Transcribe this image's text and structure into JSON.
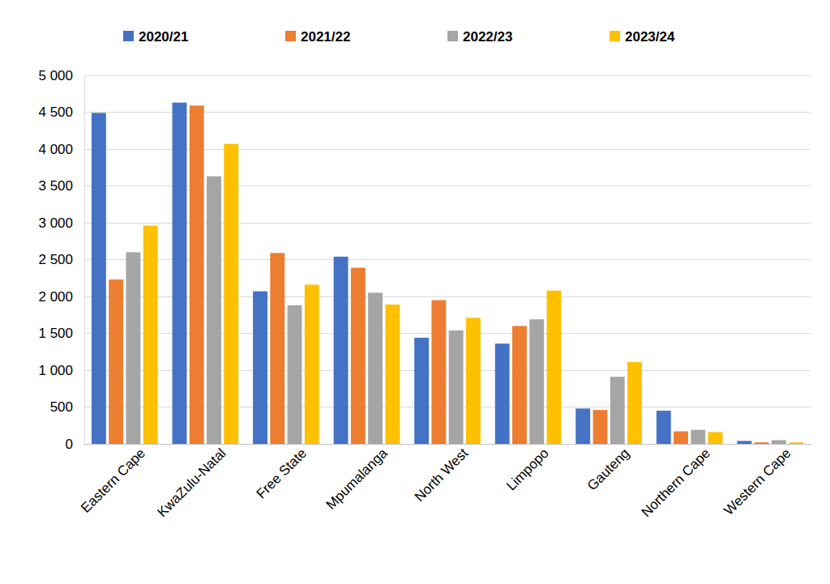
{
  "chart_data": {
    "type": "bar",
    "categories": [
      "Eastern Cape",
      "KwaZulu-Natal",
      "Free State",
      "Mpumalanga",
      "North West",
      "Limpopo",
      "Gauteng",
      "Northern Cape",
      "Western Cape"
    ],
    "series": [
      {
        "name": "2020/21",
        "color": "#4472c4",
        "values": [
          4490,
          4630,
          2070,
          2540,
          1440,
          1360,
          480,
          450,
          40
        ]
      },
      {
        "name": "2021/22",
        "color": "#ed7d31",
        "values": [
          2230,
          4590,
          2590,
          2390,
          1950,
          1600,
          460,
          170,
          20
        ]
      },
      {
        "name": "2022/23",
        "color": "#a5a5a5",
        "values": [
          2600,
          3630,
          1880,
          2050,
          1540,
          1690,
          910,
          190,
          50
        ]
      },
      {
        "name": "2023/24",
        "color": "#ffc000",
        "values": [
          2960,
          4070,
          2160,
          1890,
          1710,
          2080,
          1110,
          160,
          20
        ]
      }
    ],
    "ylim": [
      0,
      5000
    ],
    "yticks": [
      0,
      500,
      {
        "value": 1000,
        "label": "1 000"
      },
      {
        "value": 1500,
        "label": "1 500"
      },
      {
        "value": 2000,
        "label": "2 000"
      },
      {
        "value": 2500,
        "label": "2 500"
      },
      {
        "value": 3000,
        "label": "3 000"
      },
      {
        "value": 3500,
        "label": "3 500"
      },
      {
        "value": 4000,
        "label": "4 000"
      },
      {
        "value": 4500,
        "label": "4 500"
      },
      {
        "value": 5000,
        "label": "5 000"
      }
    ],
    "grid": true,
    "legend": "top"
  }
}
